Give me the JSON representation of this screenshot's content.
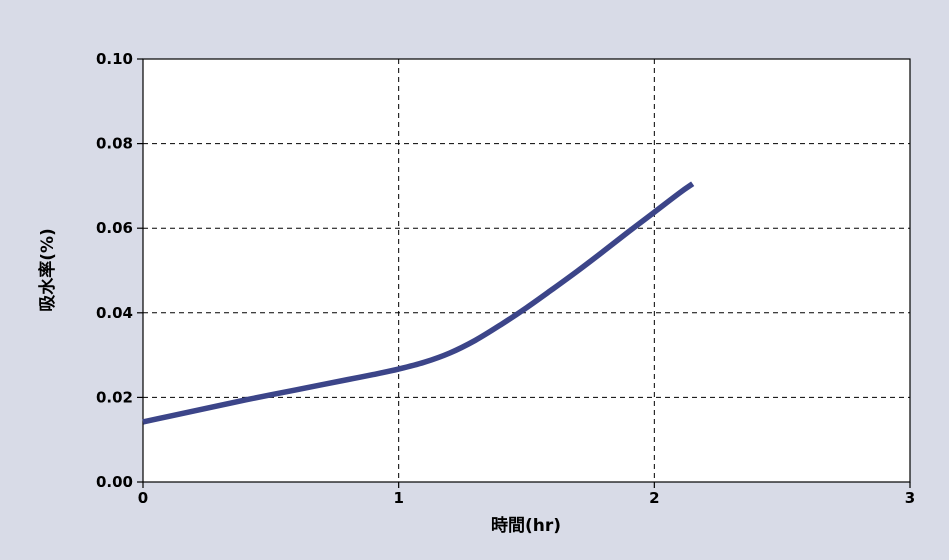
{
  "chart_data": {
    "type": "line",
    "title": "",
    "xlabel": "時間(hr)",
    "ylabel": "吸水率(%)",
    "xlim": [
      0,
      3
    ],
    "ylim": [
      0,
      0.1
    ],
    "x_ticks": [
      0,
      1,
      2,
      3
    ],
    "y_ticks": [
      0.0,
      0.02,
      0.04,
      0.06,
      0.08,
      0.1
    ],
    "x_tick_labels": [
      "0",
      "1",
      "2",
      "3"
    ],
    "y_tick_labels": [
      "0.00",
      "0.02",
      "0.04",
      "0.06",
      "0.08",
      "0.10"
    ],
    "grid": true,
    "line_color": "#3c4589",
    "background_color": "#d8dbe7",
    "series": [
      {
        "x": [
          0,
          0.1,
          0.2,
          0.3,
          0.4,
          0.5,
          0.6,
          0.7,
          0.8,
          0.9,
          1.0,
          1.1,
          1.2,
          1.3,
          1.4,
          1.5,
          1.6,
          1.7,
          1.8,
          1.9,
          2.0,
          2.1,
          2.15
        ],
        "y": [
          0.0142,
          0.0155,
          0.0168,
          0.0181,
          0.0194,
          0.0206,
          0.0218,
          0.023,
          0.0242,
          0.0254,
          0.0267,
          0.0283,
          0.0305,
          0.0335,
          0.0372,
          0.0412,
          0.0455,
          0.0499,
          0.0545,
          0.0592,
          0.0638,
          0.0684,
          0.0705
        ]
      }
    ]
  }
}
